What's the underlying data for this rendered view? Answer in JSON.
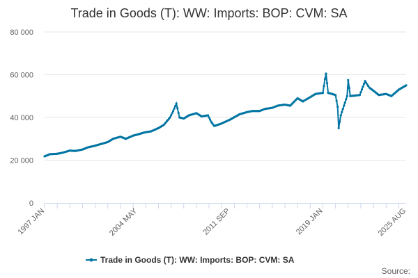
{
  "title": "Trade in Goods (T): WW: Imports: BOP: CVM: SA",
  "credit": "Source:",
  "colors": {
    "series": "#0075A3",
    "grid": "#e6e6e6",
    "axis": "#ccd6eb",
    "text": "#606060"
  },
  "chart_data": {
    "type": "line",
    "title": "Trade in Goods (T): WW: Imports: BOP: CVM: SA",
    "xlabel": "",
    "ylabel": "",
    "x_range": [
      "1997 JAN",
      "2025 AUG"
    ],
    "x_tick_labels": [
      "1997 JAN",
      "2004 MAY",
      "2011 SEP",
      "2019 JAN",
      "2025 AUG"
    ],
    "y_tick_labels": [
      "0",
      "20 000",
      "40 000",
      "60 000",
      "80 000"
    ],
    "ylim": [
      0,
      80000
    ],
    "grid": true,
    "legend_position": "bottom",
    "frequency": "monthly",
    "series": [
      {
        "name": "Trade in Goods (T): WW: Imports: BOP: CVM: SA",
        "color": "#0075A3",
        "points": [
          [
            "1997 JAN",
            21800
          ],
          [
            "1997 JUN",
            22800
          ],
          [
            "1998 JAN",
            23000
          ],
          [
            "1998 JUN",
            23500
          ],
          [
            "1999 JAN",
            24500
          ],
          [
            "1999 JUN",
            24300
          ],
          [
            "2000 JAN",
            25000
          ],
          [
            "2000 JUN",
            26000
          ],
          [
            "2001 JAN",
            26800
          ],
          [
            "2001 JUN",
            27500
          ],
          [
            "2002 JAN",
            28500
          ],
          [
            "2002 JUN",
            30000
          ],
          [
            "2003 JAN",
            31000
          ],
          [
            "2003 JUN",
            30000
          ],
          [
            "2004 JAN",
            31500
          ],
          [
            "2004 MAY",
            32000
          ],
          [
            "2004 DEC",
            33000
          ],
          [
            "2005 JUN",
            33500
          ],
          [
            "2006 JAN",
            35000
          ],
          [
            "2006 JUN",
            36500
          ],
          [
            "2006 DEC",
            40000
          ],
          [
            "2007 MAR",
            43000
          ],
          [
            "2007 JUN",
            46500
          ],
          [
            "2007 SEP",
            40000
          ],
          [
            "2008 JAN",
            39500
          ],
          [
            "2008 JUN",
            41000
          ],
          [
            "2009 JAN",
            42000
          ],
          [
            "2009 JUN",
            40500
          ],
          [
            "2009 DEC",
            41000
          ],
          [
            "2010 MAR",
            38000
          ],
          [
            "2010 JUN",
            36000
          ],
          [
            "2010 DEC",
            37000
          ],
          [
            "2011 SEP",
            39000
          ],
          [
            "2012 JUN",
            41500
          ],
          [
            "2013 JAN",
            42500
          ],
          [
            "2013 JUN",
            43000
          ],
          [
            "2014 JAN",
            43000
          ],
          [
            "2014 JUN",
            44000
          ],
          [
            "2015 JAN",
            44500
          ],
          [
            "2015 JUN",
            45500
          ],
          [
            "2016 JAN",
            46000
          ],
          [
            "2016 JUN",
            45500
          ],
          [
            "2017 JAN",
            49000
          ],
          [
            "2017 JUN",
            47500
          ],
          [
            "2018 JAN",
            49500
          ],
          [
            "2018 JUN",
            51000
          ],
          [
            "2019 JAN",
            51500
          ],
          [
            "2019 MAR",
            58000
          ],
          [
            "2019 APR",
            60500
          ],
          [
            "2019 JUN",
            51500
          ],
          [
            "2020 JAN",
            50500
          ],
          [
            "2020 MAR",
            45000
          ],
          [
            "2020 APR",
            35000
          ],
          [
            "2020 JUN",
            41000
          ],
          [
            "2020 DEC",
            50000
          ],
          [
            "2021 JAN",
            57500
          ],
          [
            "2021 MAR",
            50000
          ],
          [
            "2021 DEC",
            50500
          ],
          [
            "2022 MAY",
            57000
          ],
          [
            "2022 SEP",
            54000
          ],
          [
            "2023 JAN",
            52500
          ],
          [
            "2023 JUN",
            50500
          ],
          [
            "2024 JAN",
            51000
          ],
          [
            "2024 JUN",
            50000
          ],
          [
            "2025 JAN",
            53000
          ],
          [
            "2025 AUG",
            55000
          ]
        ]
      }
    ]
  }
}
